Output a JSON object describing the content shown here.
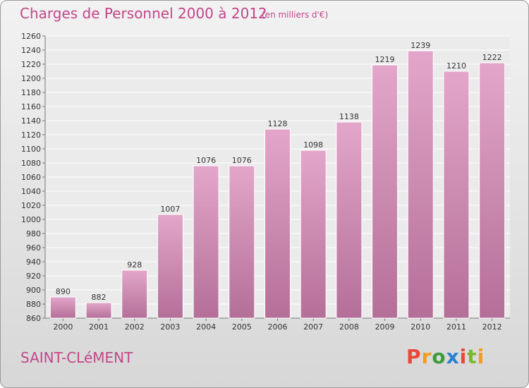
{
  "header": {
    "title": "Charges de Personnel 2000 à 2012",
    "subtitle": "(en milliers d'€)"
  },
  "footer": {
    "town": "SAINT-CLéMENT",
    "logo_text": "Proxiti"
  },
  "colors": {
    "bar_top": "#e3a6ca",
    "bar_bottom": "#b46f98",
    "title": "#c2468a",
    "logo": [
      "#e8483c",
      "#f39b1f",
      "#3c9b3a",
      "#2a7fd4",
      "#e8483c",
      "#7ab92f",
      "#f39b1f"
    ]
  },
  "chart_data": {
    "type": "bar",
    "title": "Charges de Personnel 2000 à 2012",
    "categories": [
      "2000",
      "2001",
      "2002",
      "2003",
      "2004",
      "2005",
      "2006",
      "2007",
      "2008",
      "2009",
      "2010",
      "2011",
      "2012"
    ],
    "values": [
      890,
      882,
      928,
      1007,
      1076,
      1076,
      1128,
      1098,
      1138,
      1219,
      1239,
      1210,
      1222
    ],
    "ylim": [
      860,
      1260
    ],
    "y_ticks": [
      860,
      880,
      900,
      920,
      940,
      960,
      980,
      1000,
      1020,
      1040,
      1060,
      1080,
      1100,
      1120,
      1140,
      1160,
      1180,
      1200,
      1220,
      1240,
      1260
    ],
    "grid": true,
    "data_labels": true
  }
}
